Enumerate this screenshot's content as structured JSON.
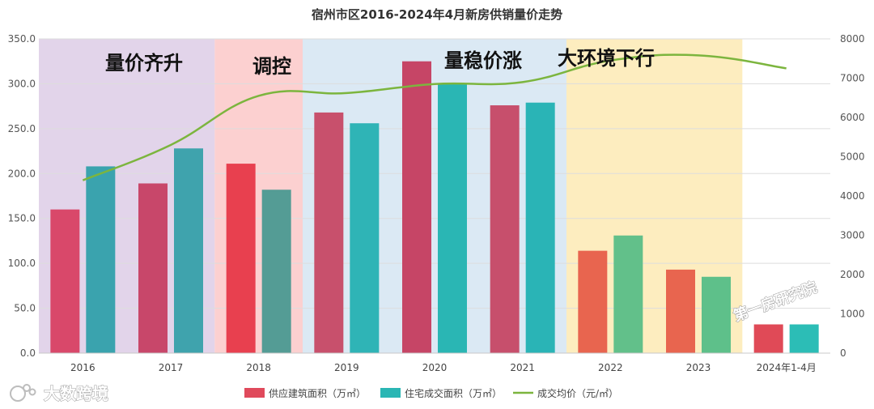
{
  "chart_data": {
    "type": "bar",
    "title": "宿州市区2016-2024年4月新房供销量价走势",
    "categories": [
      "2016",
      "2017",
      "2018",
      "2019",
      "2020",
      "2021",
      "2022",
      "2023",
      "2024年1-4月"
    ],
    "y_left": {
      "ticks": [
        "0.0",
        "50.0",
        "100.0",
        "150.0",
        "200.0",
        "250.0",
        "300.0",
        "350.0"
      ],
      "range": [
        0,
        350
      ]
    },
    "y_right": {
      "ticks": [
        "0",
        "1000",
        "2000",
        "3000",
        "4000",
        "5000",
        "6000",
        "7000",
        "8000"
      ],
      "range": [
        0,
        8000
      ]
    },
    "series": [
      {
        "name": "供应建筑面积（万㎡）",
        "type": "bar",
        "axis": "left",
        "values": [
          160,
          189,
          211,
          268,
          325,
          276,
          114,
          93,
          32
        ]
      },
      {
        "name": "住宅成交面积（万㎡）",
        "type": "bar",
        "axis": "left",
        "values": [
          208,
          228,
          182,
          256,
          300,
          279,
          131,
          85,
          32
        ]
      },
      {
        "name": "成交均价（元/㎡）",
        "type": "line",
        "axis": "right",
        "values": [
          4400,
          5300,
          6550,
          6620,
          6850,
          6900,
          7450,
          7580,
          7250
        ]
      }
    ],
    "bar_colors": {
      "supply": [
        "#d9486a",
        "#c8476a",
        "#e8404f",
        "#c8506c",
        "#c64566",
        "#c74f6c",
        "#e8654f",
        "#e8654f",
        "#e04a57"
      ],
      "deal": [
        "#3aa3ae",
        "#3fa3ad",
        "#549c95",
        "#2fb4b6",
        "#2ab6b4",
        "#2ab4b6",
        "#62c08a",
        "#5ec08a",
        "#2cbdb6"
      ]
    },
    "line_color": "#7cb53e",
    "phases": [
      {
        "label": "量价齐升",
        "span": [
          0,
          1
        ],
        "color": "#e2d4ea"
      },
      {
        "label": "调控",
        "span": [
          2,
          2
        ],
        "color": "#fcd0d0"
      },
      {
        "label": "量稳价涨",
        "span": [
          3,
          5
        ],
        "color": "#dbe9f4"
      },
      {
        "label": "大环境下行",
        "span": [
          6,
          7
        ],
        "color": "#fdedbf"
      }
    ],
    "legend": [
      {
        "label": "供应建筑面积（万㎡）",
        "color": "#e04a5c",
        "kind": "rect"
      },
      {
        "label": "住宅成交面积（万㎡）",
        "color": "#2ab6b4",
        "kind": "rect"
      },
      {
        "label": "成交均价（元/㎡）",
        "color": "#7cb53e",
        "kind": "line"
      }
    ]
  },
  "watermarks": {
    "bottom_left": "大数跨境",
    "right": "第一房研究院"
  }
}
